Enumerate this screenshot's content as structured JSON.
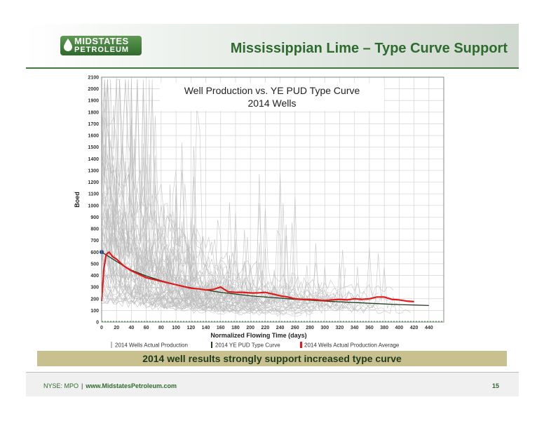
{
  "header": {
    "title": "Mississippian Lime – Type Curve Support",
    "logo": {
      "line1": "MIDSTATES",
      "line2": "PETROLEUM",
      "color": "#3f7a3f"
    }
  },
  "banner": {
    "text": "2014 well results strongly support increased type curve"
  },
  "footer": {
    "ticker": "NYSE: MPO",
    "separator": "|",
    "url": "www.MidstatesPetroleum.com",
    "page_number": "15"
  },
  "chart_data": {
    "type": "line",
    "title_line1": "Well Production vs. YE PUD Type Curve",
    "title_line2": "2014 Wells",
    "xlabel": "Normalized Flowing Time (days)",
    "ylabel": "Boed",
    "xlim": [
      0,
      460
    ],
    "ylim": [
      0,
      2100
    ],
    "x_ticks": [
      0,
      20,
      40,
      60,
      80,
      100,
      120,
      140,
      160,
      180,
      200,
      220,
      240,
      260,
      280,
      300,
      320,
      340,
      360,
      380,
      400,
      420,
      440
    ],
    "y_ticks": [
      0,
      100,
      200,
      300,
      400,
      500,
      600,
      700,
      800,
      900,
      1000,
      1100,
      1200,
      1300,
      1400,
      1500,
      1600,
      1700,
      1800,
      1900,
      2000,
      2100
    ],
    "grid": true,
    "legend_position": "bottom",
    "series": [
      {
        "name": "2014 Wells Actual Production",
        "color": "#bdbdbd",
        "style": "thin-gray-lines",
        "peak_boed": 1950,
        "well_count": 60
      },
      {
        "name": "2014 YE PUD Type Curve",
        "color": "#1f3f1f",
        "style": "line",
        "x": [
          0,
          10,
          20,
          30,
          40,
          60,
          80,
          100,
          120,
          140,
          160,
          180,
          200,
          220,
          240,
          260,
          280,
          300,
          320,
          340,
          360,
          380,
          400,
          420,
          440
        ],
        "y": [
          600,
          560,
          520,
          480,
          445,
          395,
          355,
          320,
          295,
          275,
          255,
          240,
          225,
          215,
          205,
          195,
          188,
          180,
          173,
          167,
          161,
          155,
          150,
          146,
          142
        ]
      },
      {
        "name": "2014 Wells Actual Production Average",
        "color": "#e01b1b",
        "style": "line",
        "x": [
          0,
          3,
          6,
          10,
          15,
          20,
          30,
          40,
          50,
          60,
          70,
          80,
          90,
          100,
          110,
          120,
          130,
          140,
          150,
          160,
          170,
          180,
          190,
          200,
          210,
          220,
          230,
          240,
          250,
          260,
          270,
          280,
          290,
          300,
          310,
          320,
          330,
          340,
          350,
          360,
          370,
          380,
          390,
          400,
          410,
          420
        ],
        "y": [
          180,
          460,
          580,
          600,
          560,
          540,
          480,
          440,
          410,
          380,
          365,
          350,
          335,
          320,
          305,
          290,
          285,
          275,
          280,
          300,
          260,
          255,
          255,
          250,
          250,
          255,
          240,
          225,
          215,
          200,
          195,
          195,
          190,
          185,
          190,
          195,
          190,
          200,
          195,
          200,
          215,
          215,
          195,
          190,
          180,
          175
        ]
      }
    ],
    "type_curve_start_marker": {
      "x": 0,
      "y": 600,
      "color": "#1f3f8f"
    },
    "baseline_dashed": {
      "y": 0,
      "color": "#3f9a3f"
    }
  }
}
